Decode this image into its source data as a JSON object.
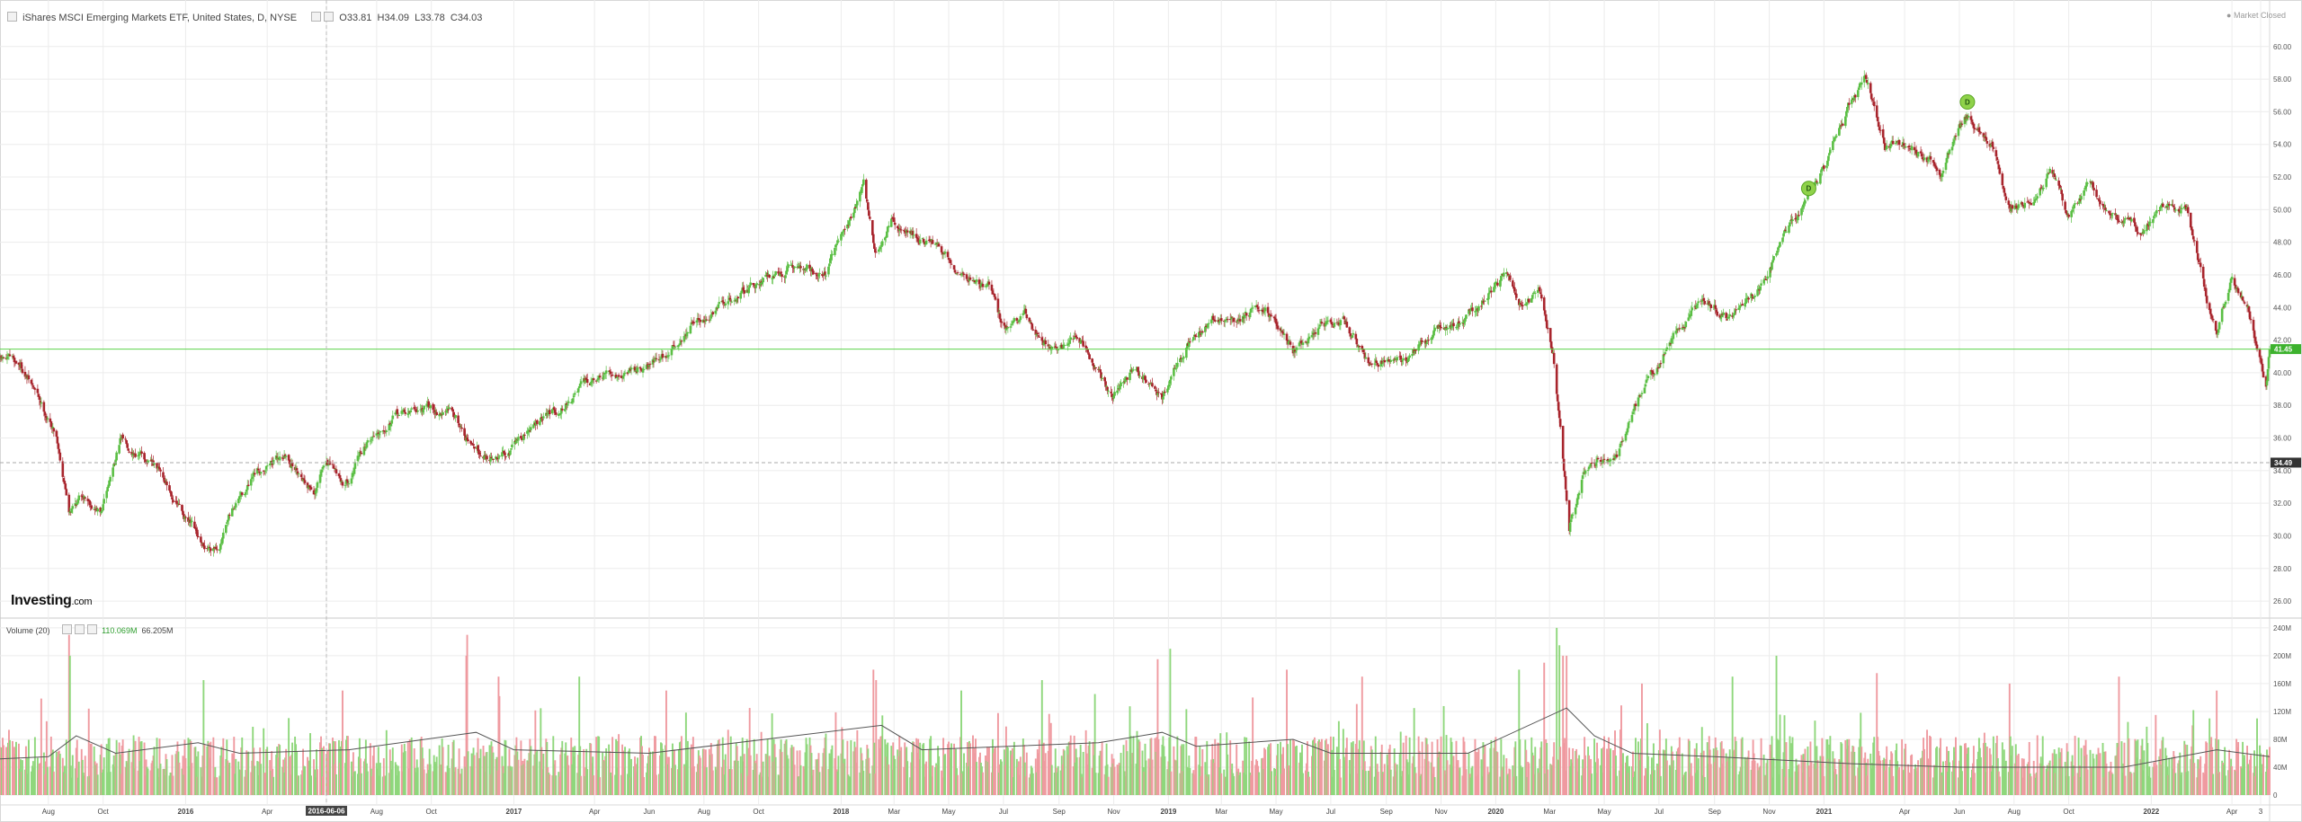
{
  "header": {
    "instrument": "iShares MSCI Emerging Markets ETF, United States, D, NYSE",
    "open": "O33.81",
    "high": "H34.09",
    "low": "L33.78",
    "close": "C34.03",
    "market_status": "Market Closed"
  },
  "volume_header": {
    "label": "Volume (20)",
    "value1": "110.069M",
    "value2": "66.205M"
  },
  "logo": {
    "main": "Investing",
    "suffix": ".com"
  },
  "colors": {
    "up": "#5bbf45",
    "down": "#a8252d",
    "vol_up": "#8fd77c",
    "vol_down": "#ef9aa0",
    "current_line": "#5bd34a",
    "grid": "#ececec"
  },
  "chart_data": [
    {
      "type": "candlestick",
      "title": "iShares MSCI Emerging Markets ETF, United States, D, NYSE",
      "x_range": [
        "2015-06-08",
        "2022-05-13"
      ],
      "ylim": [
        25.4,
        61.2
      ],
      "y_ticks": [
        "60.00",
        "58.00",
        "56.00",
        "54.00",
        "52.00",
        "50.00",
        "48.00",
        "46.00",
        "44.00",
        "42.00",
        "40.00",
        "38.00",
        "36.00",
        "34.00",
        "32.00",
        "30.00",
        "28.00",
        "26.00"
      ],
      "x_tick_labels": [
        "Aug",
        "Oct",
        "2016",
        "Apr",
        "2016-06-06",
        "Aug",
        "Oct",
        "2017",
        "Apr",
        "Jun",
        "Aug",
        "Oct",
        "2018",
        "Mar",
        "May",
        "Jul",
        "Sep",
        "Nov",
        "2019",
        "Mar",
        "May",
        "Jul",
        "Sep",
        "Nov",
        "2020",
        "Mar",
        "May",
        "Jul",
        "Sep",
        "Nov",
        "2021",
        "Apr",
        "Jun",
        "Aug",
        "Oct",
        "2022",
        "Apr",
        "3"
      ],
      "current_price_label": "41.45",
      "crosshair_price_label": "34.49",
      "crosshair_date": "2016-06-06",
      "events": [
        {
          "date": "2020-12-15",
          "label": "D",
          "price": 51.3
        },
        {
          "date": "2021-06-10",
          "label": "D",
          "price": 56.6
        }
      ],
      "price_path": [
        [
          "2015-06-08",
          40.8
        ],
        [
          "2015-07-01",
          40.5
        ],
        [
          "2015-07-20",
          38.5
        ],
        [
          "2015-08-10",
          36.2
        ],
        [
          "2015-08-24",
          31.8
        ],
        [
          "2015-09-10",
          32.6
        ],
        [
          "2015-09-29",
          31.4
        ],
        [
          "2015-10-20",
          35.8
        ],
        [
          "2015-11-05",
          35.4
        ],
        [
          "2015-12-01",
          34.0
        ],
        [
          "2015-12-20",
          32.3
        ],
        [
          "2016-01-10",
          30.2
        ],
        [
          "2016-01-21",
          28.8
        ],
        [
          "2016-02-10",
          29.8
        ],
        [
          "2016-03-01",
          32.2
        ],
        [
          "2016-04-01",
          34.5
        ],
        [
          "2016-04-20",
          35.0
        ],
        [
          "2016-05-10",
          33.8
        ],
        [
          "2016-05-25",
          32.8
        ],
        [
          "2016-06-06",
          34.5
        ],
        [
          "2016-06-27",
          33.2
        ],
        [
          "2016-07-20",
          35.6
        ],
        [
          "2016-08-15",
          37.3
        ],
        [
          "2016-09-20",
          37.8
        ],
        [
          "2016-10-25",
          37.6
        ],
        [
          "2016-11-15",
          35.5
        ],
        [
          "2016-12-15",
          34.8
        ],
        [
          "2017-01-20",
          36.6
        ],
        [
          "2017-02-15",
          37.6
        ],
        [
          "2017-03-15",
          38.9
        ],
        [
          "2017-04-15",
          39.6
        ],
        [
          "2017-05-20",
          40.6
        ],
        [
          "2017-06-20",
          41.1
        ],
        [
          "2017-07-20",
          43.0
        ],
        [
          "2017-08-20",
          43.9
        ],
        [
          "2017-09-25",
          45.4
        ],
        [
          "2017-10-20",
          46.1
        ],
        [
          "2017-11-20",
          46.5
        ],
        [
          "2017-12-15",
          46.2
        ],
        [
          "2018-01-10",
          49.2
        ],
        [
          "2018-01-26",
          51.7
        ],
        [
          "2018-02-08",
          47.3
        ],
        [
          "2018-02-26",
          49.1
        ],
        [
          "2018-03-20",
          48.7
        ],
        [
          "2018-04-15",
          47.8
        ],
        [
          "2018-05-15",
          46.2
        ],
        [
          "2018-06-15",
          45.3
        ],
        [
          "2018-07-01",
          42.6
        ],
        [
          "2018-07-25",
          43.4
        ],
        [
          "2018-08-20",
          41.6
        ],
        [
          "2018-09-15",
          42.2
        ],
        [
          "2018-10-10",
          40.6
        ],
        [
          "2018-10-30",
          38.3
        ],
        [
          "2018-11-25",
          40.3
        ],
        [
          "2018-12-25",
          38.5
        ],
        [
          "2019-01-20",
          41.6
        ],
        [
          "2019-02-25",
          43.4
        ],
        [
          "2019-03-20",
          42.9
        ],
        [
          "2019-04-20",
          44.3
        ],
        [
          "2019-05-20",
          41.3
        ],
        [
          "2019-06-20",
          42.7
        ],
        [
          "2019-07-15",
          43.3
        ],
        [
          "2019-08-15",
          40.3
        ],
        [
          "2019-09-10",
          41.3
        ],
        [
          "2019-09-30",
          40.9
        ],
        [
          "2019-10-25",
          42.6
        ],
        [
          "2019-11-20",
          43.1
        ],
        [
          "2019-12-20",
          44.6
        ],
        [
          "2020-01-15",
          46.1
        ],
        [
          "2020-02-01",
          43.9
        ],
        [
          "2020-02-20",
          44.7
        ],
        [
          "2020-03-05",
          41.5
        ],
        [
          "2020-03-23",
          30.9
        ],
        [
          "2020-04-10",
          34.2
        ],
        [
          "2020-05-15",
          34.8
        ],
        [
          "2020-06-10",
          38.6
        ],
        [
          "2020-07-20",
          42.6
        ],
        [
          "2020-08-20",
          44.6
        ],
        [
          "2020-09-20",
          43.3
        ],
        [
          "2020-10-25",
          45.6
        ],
        [
          "2020-11-25",
          49.6
        ],
        [
          "2020-12-25",
          51.6
        ],
        [
          "2021-01-25",
          55.6
        ],
        [
          "2021-02-16",
          58.3
        ],
        [
          "2021-03-10",
          53.6
        ],
        [
          "2021-04-10",
          54.1
        ],
        [
          "2021-05-12",
          52.6
        ],
        [
          "2021-06-10",
          55.6
        ],
        [
          "2021-07-10",
          53.6
        ],
        [
          "2021-07-28",
          50.3
        ],
        [
          "2021-08-20",
          50.6
        ],
        [
          "2021-09-10",
          52.6
        ],
        [
          "2021-10-01",
          49.2
        ],
        [
          "2021-10-25",
          51.6
        ],
        [
          "2021-11-25",
          49.3
        ],
        [
          "2021-12-20",
          48.6
        ],
        [
          "2022-01-15",
          50.1
        ],
        [
          "2022-02-10",
          49.9
        ],
        [
          "2022-03-05",
          44.1
        ],
        [
          "2022-03-15",
          42.6
        ],
        [
          "2022-04-01",
          46.1
        ],
        [
          "2022-04-20",
          43.6
        ],
        [
          "2022-05-09",
          39.3
        ],
        [
          "2022-05-13",
          41.45
        ]
      ]
    },
    {
      "type": "bar",
      "title": "Volume (20)",
      "ylim": [
        0,
        245
      ],
      "unit": "M",
      "y_ticks": [
        "240M",
        "200M",
        "160M",
        "120M",
        "80M",
        "40M",
        "0"
      ],
      "baseline": 55,
      "spikes": [
        [
          "2015-08-24",
          230
        ],
        [
          "2015-08-25",
          200
        ],
        [
          "2016-01-21",
          165
        ],
        [
          "2016-06-24",
          150
        ],
        [
          "2016-11-09",
          200
        ],
        [
          "2016-11-10",
          230
        ],
        [
          "2016-12-15",
          170
        ],
        [
          "2017-03-15",
          170
        ],
        [
          "2017-06-20",
          150
        ],
        [
          "2018-02-06",
          180
        ],
        [
          "2018-02-09",
          165
        ],
        [
          "2018-05-15",
          150
        ],
        [
          "2018-08-13",
          165
        ],
        [
          "2018-10-11",
          145
        ],
        [
          "2018-12-20",
          195
        ],
        [
          "2019-01-03",
          210
        ],
        [
          "2019-05-13",
          180
        ],
        [
          "2019-08-05",
          170
        ],
        [
          "2020-01-27",
          180
        ],
        [
          "2020-02-24",
          190
        ],
        [
          "2020-03-09",
          240
        ],
        [
          "2020-03-12",
          215
        ],
        [
          "2020-03-16",
          200
        ],
        [
          "2020-03-20",
          200
        ],
        [
          "2020-06-12",
          160
        ],
        [
          "2020-09-21",
          170
        ],
        [
          "2020-11-09",
          200
        ],
        [
          "2021-03-01",
          175
        ],
        [
          "2021-07-27",
          160
        ],
        [
          "2021-11-26",
          170
        ],
        [
          "2022-03-07",
          110
        ],
        [
          "2022-03-15",
          150
        ],
        [
          "2022-04-29",
          110
        ]
      ],
      "moving_average_path": [
        [
          "2015-06-08",
          52
        ],
        [
          "2015-08-01",
          55
        ],
        [
          "2015-09-01",
          85
        ],
        [
          "2015-10-15",
          60
        ],
        [
          "2016-01-15",
          75
        ],
        [
          "2016-03-01",
          60
        ],
        [
          "2016-07-01",
          65
        ],
        [
          "2016-11-20",
          90
        ],
        [
          "2017-01-01",
          65
        ],
        [
          "2017-06-01",
          60
        ],
        [
          "2018-02-15",
          100
        ],
        [
          "2018-04-01",
          65
        ],
        [
          "2018-10-15",
          75
        ],
        [
          "2018-12-25",
          90
        ],
        [
          "2019-02-01",
          70
        ],
        [
          "2019-05-20",
          80
        ],
        [
          "2019-07-01",
          60
        ],
        [
          "2019-12-01",
          60
        ],
        [
          "2020-03-20",
          125
        ],
        [
          "2020-04-20",
          85
        ],
        [
          "2020-06-01",
          60
        ],
        [
          "2020-09-01",
          55
        ],
        [
          "2021-02-01",
          45
        ],
        [
          "2021-06-01",
          40
        ],
        [
          "2021-12-01",
          40
        ],
        [
          "2022-03-15",
          65
        ],
        [
          "2022-05-13",
          55
        ]
      ]
    }
  ]
}
